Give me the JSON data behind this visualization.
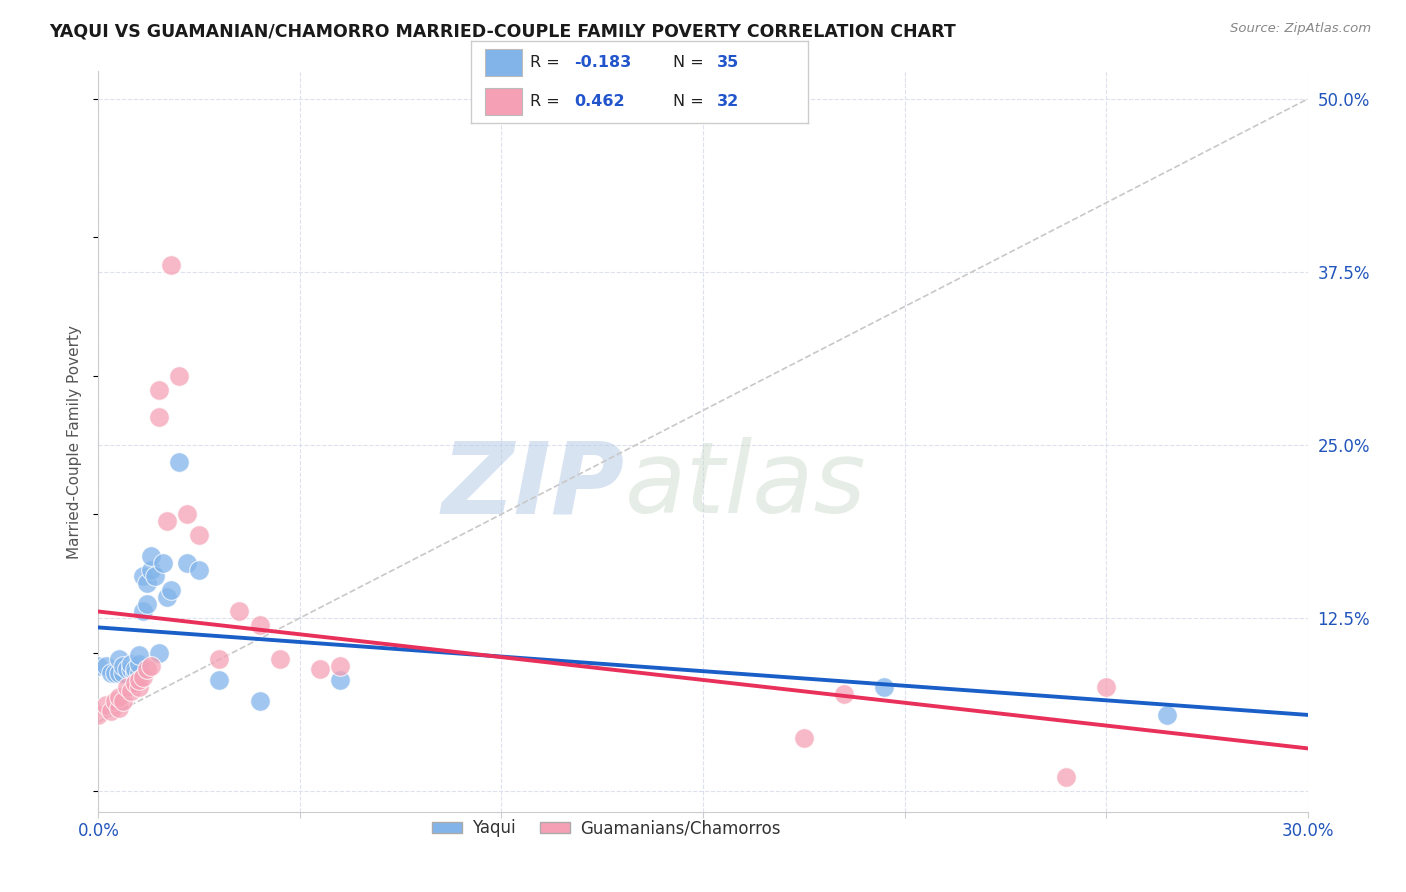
{
  "title": "YAQUI VS GUAMANIAN/CHAMORRO MARRIED-COUPLE FAMILY POVERTY CORRELATION CHART",
  "source": "Source: ZipAtlas.com",
  "ylabel": "Married-Couple Family Poverty",
  "xlim": [
    0.0,
    0.3
  ],
  "ylim": [
    -0.015,
    0.52
  ],
  "xticks": [
    0.0,
    0.05,
    0.1,
    0.15,
    0.2,
    0.25,
    0.3
  ],
  "xticklabels": [
    "0.0%",
    "",
    "",
    "",
    "",
    "",
    "30.0%"
  ],
  "yticks": [
    0.0,
    0.125,
    0.25,
    0.375,
    0.5
  ],
  "yticklabels": [
    "",
    "12.5%",
    "25.0%",
    "37.5%",
    "50.0%"
  ],
  "grid_color": "#dde0ee",
  "background_color": "#ffffff",
  "watermark_zip": "ZIP",
  "watermark_atlas": "atlas",
  "color_blue": "#82b4ea",
  "color_pink": "#f5a0b5",
  "line_blue": "#1a5fc8",
  "line_pink": "#e8305a",
  "line_gray": "#c8c8c8",
  "legend_label1": "Yaqui",
  "legend_label2": "Guamanians/Chamorros",
  "yaqui_x": [
    0.0,
    0.002,
    0.003,
    0.004,
    0.005,
    0.005,
    0.006,
    0.006,
    0.007,
    0.008,
    0.008,
    0.009,
    0.009,
    0.01,
    0.01,
    0.01,
    0.011,
    0.011,
    0.012,
    0.012,
    0.013,
    0.013,
    0.014,
    0.015,
    0.016,
    0.017,
    0.018,
    0.02,
    0.022,
    0.025,
    0.03,
    0.04,
    0.06,
    0.195,
    0.265
  ],
  "yaqui_y": [
    0.09,
    0.09,
    0.085,
    0.085,
    0.085,
    0.095,
    0.085,
    0.09,
    0.088,
    0.088,
    0.092,
    0.085,
    0.088,
    0.085,
    0.092,
    0.098,
    0.13,
    0.155,
    0.135,
    0.15,
    0.16,
    0.17,
    0.155,
    0.1,
    0.165,
    0.14,
    0.145,
    0.238,
    0.165,
    0.16,
    0.08,
    0.065,
    0.08,
    0.075,
    0.055
  ],
  "guam_x": [
    0.0,
    0.002,
    0.003,
    0.004,
    0.005,
    0.005,
    0.006,
    0.007,
    0.008,
    0.009,
    0.01,
    0.01,
    0.011,
    0.012,
    0.013,
    0.015,
    0.015,
    0.017,
    0.018,
    0.02,
    0.022,
    0.025,
    0.03,
    0.035,
    0.04,
    0.045,
    0.055,
    0.06,
    0.175,
    0.185,
    0.24,
    0.25
  ],
  "guam_y": [
    0.055,
    0.062,
    0.058,
    0.065,
    0.06,
    0.068,
    0.065,
    0.075,
    0.072,
    0.078,
    0.075,
    0.08,
    0.082,
    0.088,
    0.09,
    0.27,
    0.29,
    0.195,
    0.38,
    0.3,
    0.2,
    0.185,
    0.095,
    0.13,
    0.12,
    0.095,
    0.088,
    0.09,
    0.038,
    0.07,
    0.01,
    0.075
  ]
}
